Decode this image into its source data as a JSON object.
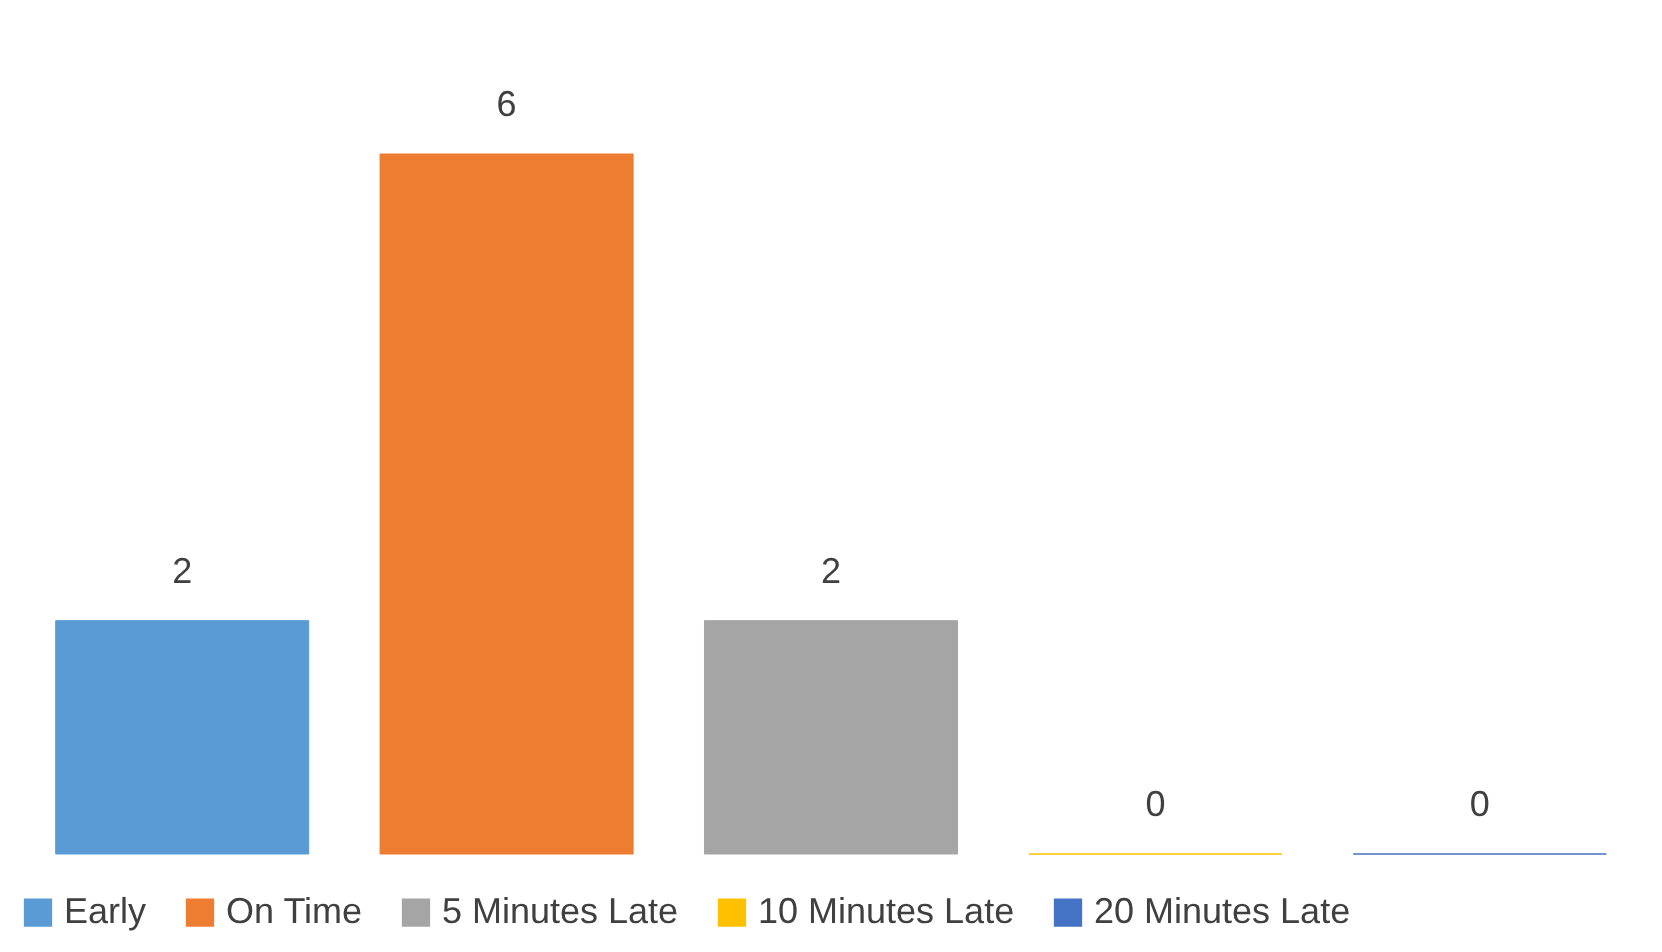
{
  "chart_data": {
    "type": "bar",
    "categories": [
      null
    ],
    "series": [
      {
        "name": "Early",
        "color": "#5b9bd5",
        "values": [
          2
        ]
      },
      {
        "name": "On Time",
        "color": "#ed7d31",
        "values": [
          6
        ]
      },
      {
        "name": "5 Minutes Late",
        "color": "#a5a5a5",
        "values": [
          2
        ]
      },
      {
        "name": "10 Minutes Late",
        "color": "#ffc000",
        "values": [
          0
        ]
      },
      {
        "name": "20 Minutes Late",
        "color": "#4472c4",
        "values": [
          0
        ]
      }
    ],
    "data_labels": true,
    "legend": "bottom"
  }
}
